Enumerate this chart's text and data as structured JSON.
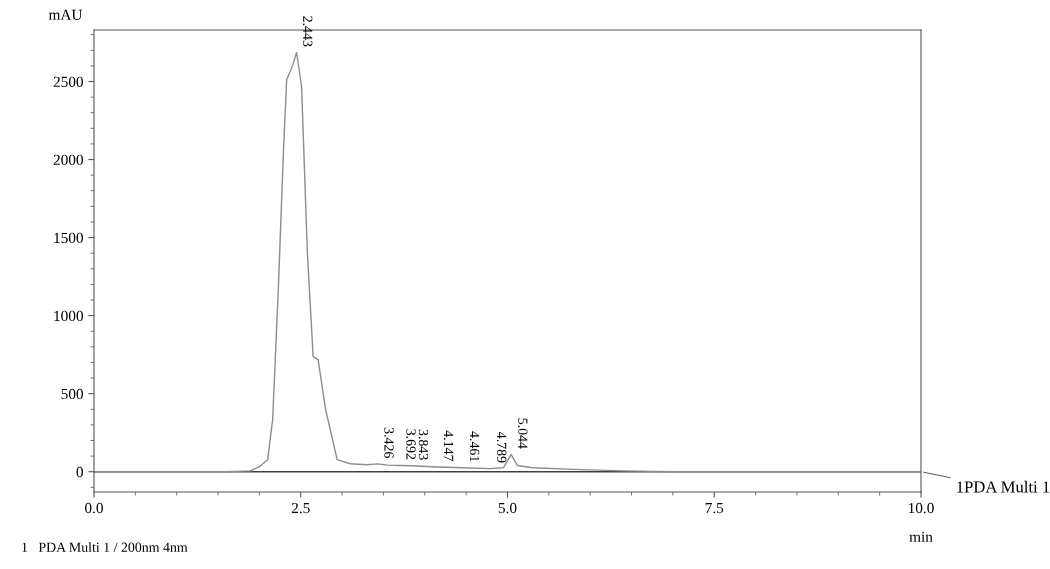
{
  "chart_data": {
    "type": "line",
    "xlabel": "min",
    "ylabel": "mAU",
    "series": [
      {
        "color": "#8c8c8c",
        "x": [
          0.0,
          1.0,
          1.6,
          1.89,
          2.0,
          2.1,
          2.16,
          2.23,
          2.29,
          2.33,
          2.4,
          2.45,
          2.51,
          2.58,
          2.65,
          2.71,
          2.8,
          2.94,
          3.1,
          3.3,
          3.426,
          3.55,
          3.692,
          3.843,
          4.147,
          4.461,
          4.789,
          4.95,
          5.044,
          5.12,
          5.3,
          5.8,
          6.4,
          7.0,
          8.6,
          10.0
        ],
        "values": [
          0,
          0,
          0,
          5,
          32,
          77,
          333,
          1186,
          2045,
          2513,
          2600,
          2686,
          2468,
          1404,
          737,
          718,
          400,
          77,
          51,
          45,
          50,
          42,
          40,
          38,
          30,
          25,
          20,
          25,
          110,
          40,
          25,
          15,
          5,
          0,
          0,
          0
        ]
      }
    ],
    "xlim": [
      0.0,
      10.0
    ],
    "xticks": [
      {
        "value": 0,
        "label": "0.0"
      },
      2.5,
      {
        "value": 5,
        "label": "5.0"
      },
      7.5,
      {
        "value": 10,
        "label": "10.0"
      }
    ],
    "ylim": [
      -130,
      2830
    ],
    "yticks": [
      0,
      500,
      1000,
      1500,
      2000,
      2500
    ],
    "ref_lines": [
      {
        "axis": "y",
        "value": 0,
        "color": "#404040"
      }
    ],
    "grid": false,
    "legend": false,
    "annotations": [
      {
        "text": "2.443",
        "x": 2.443,
        "y": 2686
      },
      {
        "text": "3.426",
        "x": 3.426,
        "y": 50
      },
      {
        "text": "3.692",
        "x": 3.692,
        "y": 40
      },
      {
        "text": "3.843",
        "x": 3.843,
        "y": 38
      },
      {
        "text": "4.147",
        "x": 4.147,
        "y": 30
      },
      {
        "text": "4.461",
        "x": 4.461,
        "y": 25
      },
      {
        "text": "4.789",
        "x": 4.789,
        "y": 20
      },
      {
        "text": "5.044",
        "x": 5.044,
        "y": 110
      },
      {
        "text": "1PDA Multi 1",
        "x": 10.0,
        "y": 0
      },
      "1   PDA Multi 1 / 200nm 4nm"
    ]
  }
}
